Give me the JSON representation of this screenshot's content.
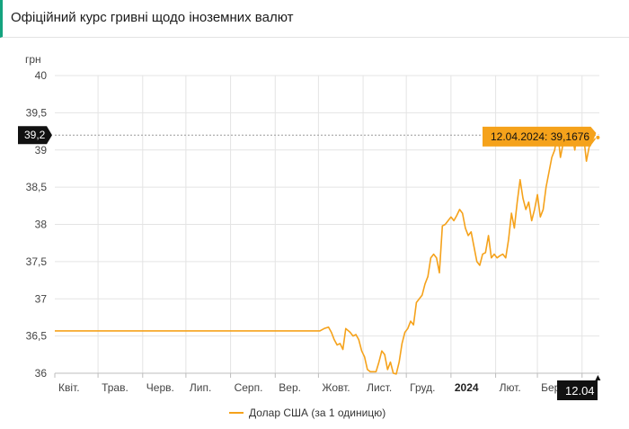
{
  "header": {
    "title": "Офіційний курс гривні щодо іноземних валют"
  },
  "chart_data": {
    "type": "line",
    "ylabel": "грн",
    "ylim": [
      36,
      40
    ],
    "yticks": [
      {
        "v": 36,
        "label": "36"
      },
      {
        "v": 36.5,
        "label": "36,5"
      },
      {
        "v": 37,
        "label": "37"
      },
      {
        "v": 37.5,
        "label": "37,5"
      },
      {
        "v": 38,
        "label": "38"
      },
      {
        "v": 38.5,
        "label": "38,5"
      },
      {
        "v": 39,
        "label": "39"
      },
      {
        "v": 39.5,
        "label": "39,5"
      },
      {
        "v": 40,
        "label": "40"
      }
    ],
    "xlim": [
      "2023-04-01",
      "2024-04-13"
    ],
    "xticks": [
      {
        "date": "2023-04-01",
        "label": "Квіт.",
        "bold": false
      },
      {
        "date": "2023-05-01",
        "label": "Трав.",
        "bold": false
      },
      {
        "date": "2023-06-01",
        "label": "Черв.",
        "bold": false
      },
      {
        "date": "2023-07-01",
        "label": "Лип.",
        "bold": false
      },
      {
        "date": "2023-08-01",
        "label": "Серп.",
        "bold": false
      },
      {
        "date": "2023-09-01",
        "label": "Вер.",
        "bold": false
      },
      {
        "date": "2023-10-01",
        "label": "Жовт.",
        "bold": false
      },
      {
        "date": "2023-11-01",
        "label": "Лист.",
        "bold": false
      },
      {
        "date": "2023-12-01",
        "label": "Груд.",
        "bold": false
      },
      {
        "date": "2024-01-01",
        "label": "2024",
        "bold": true
      },
      {
        "date": "2024-02-01",
        "label": "Лют.",
        "bold": false
      },
      {
        "date": "2024-03-01",
        "label": "Бер.",
        "bold": false
      },
      {
        "date": "2024-04-01",
        "label": "",
        "bold": false
      }
    ],
    "series": [
      {
        "name": "Долар США (за 1 одиницю)",
        "color": "#f5a21b",
        "points": [
          [
            "2023-04-01",
            36.5686
          ],
          [
            "2023-10-02",
            36.5686
          ],
          [
            "2023-10-05",
            36.6
          ],
          [
            "2023-10-08",
            36.62
          ],
          [
            "2023-10-10",
            36.55
          ],
          [
            "2023-10-12",
            36.45
          ],
          [
            "2023-10-14",
            36.38
          ],
          [
            "2023-10-16",
            36.4
          ],
          [
            "2023-10-18",
            36.32
          ],
          [
            "2023-10-20",
            36.6
          ],
          [
            "2023-10-23",
            36.55
          ],
          [
            "2023-10-25",
            36.5
          ],
          [
            "2023-10-27",
            36.52
          ],
          [
            "2023-10-29",
            36.45
          ],
          [
            "2023-10-31",
            36.3
          ],
          [
            "2023-11-02",
            36.22
          ],
          [
            "2023-11-04",
            36.05
          ],
          [
            "2023-11-06",
            36.02
          ],
          [
            "2023-11-10",
            36.02
          ],
          [
            "2023-11-12",
            36.15
          ],
          [
            "2023-11-14",
            36.3
          ],
          [
            "2023-11-16",
            36.25
          ],
          [
            "2023-11-18",
            36.05
          ],
          [
            "2023-11-20",
            36.15
          ],
          [
            "2023-11-22",
            36.0
          ],
          [
            "2023-11-24",
            35.99
          ],
          [
            "2023-11-26",
            36.15
          ],
          [
            "2023-11-28",
            36.4
          ],
          [
            "2023-11-30",
            36.55
          ],
          [
            "2023-12-02",
            36.6
          ],
          [
            "2023-12-04",
            36.7
          ],
          [
            "2023-12-06",
            36.65
          ],
          [
            "2023-12-08",
            36.95
          ],
          [
            "2023-12-10",
            37.0
          ],
          [
            "2023-12-12",
            37.05
          ],
          [
            "2023-12-14",
            37.2
          ],
          [
            "2023-12-16",
            37.3
          ],
          [
            "2023-12-18",
            37.55
          ],
          [
            "2023-12-20",
            37.6
          ],
          [
            "2023-12-22",
            37.55
          ],
          [
            "2023-12-24",
            37.35
          ],
          [
            "2023-12-26",
            37.98
          ],
          [
            "2023-12-28",
            38.0
          ],
          [
            "2023-12-30",
            38.05
          ],
          [
            "2024-01-01",
            38.1
          ],
          [
            "2024-01-03",
            38.05
          ],
          [
            "2024-01-05",
            38.12
          ],
          [
            "2024-01-07",
            38.2
          ],
          [
            "2024-01-09",
            38.15
          ],
          [
            "2024-01-11",
            37.95
          ],
          [
            "2024-01-13",
            37.85
          ],
          [
            "2024-01-15",
            37.9
          ],
          [
            "2024-01-17",
            37.7
          ],
          [
            "2024-01-19",
            37.5
          ],
          [
            "2024-01-21",
            37.45
          ],
          [
            "2024-01-23",
            37.6
          ],
          [
            "2024-01-25",
            37.62
          ],
          [
            "2024-01-27",
            37.85
          ],
          [
            "2024-01-29",
            37.55
          ],
          [
            "2024-01-31",
            37.6
          ],
          [
            "2024-02-02",
            37.55
          ],
          [
            "2024-02-04",
            37.58
          ],
          [
            "2024-02-06",
            37.6
          ],
          [
            "2024-02-08",
            37.55
          ],
          [
            "2024-02-10",
            37.8
          ],
          [
            "2024-02-12",
            38.15
          ],
          [
            "2024-02-14",
            37.95
          ],
          [
            "2024-02-16",
            38.3
          ],
          [
            "2024-02-18",
            38.6
          ],
          [
            "2024-02-20",
            38.35
          ],
          [
            "2024-02-22",
            38.2
          ],
          [
            "2024-02-24",
            38.3
          ],
          [
            "2024-02-26",
            38.05
          ],
          [
            "2024-02-28",
            38.2
          ],
          [
            "2024-03-01",
            38.4
          ],
          [
            "2024-03-03",
            38.1
          ],
          [
            "2024-03-05",
            38.2
          ],
          [
            "2024-03-07",
            38.5
          ],
          [
            "2024-03-09",
            38.7
          ],
          [
            "2024-03-11",
            38.9
          ],
          [
            "2024-03-13",
            39.0
          ],
          [
            "2024-03-15",
            39.25
          ],
          [
            "2024-03-17",
            38.9
          ],
          [
            "2024-03-19",
            39.1
          ],
          [
            "2024-03-21",
            39.3
          ],
          [
            "2024-03-23",
            39.15
          ],
          [
            "2024-03-25",
            39.2
          ],
          [
            "2024-03-27",
            39.0
          ],
          [
            "2024-03-29",
            39.3
          ],
          [
            "2024-03-31",
            39.1
          ],
          [
            "2024-04-02",
            39.2
          ],
          [
            "2024-04-04",
            38.85
          ],
          [
            "2024-04-06",
            39.05
          ],
          [
            "2024-04-08",
            39.1
          ],
          [
            "2024-04-10",
            39.15
          ],
          [
            "2024-04-12",
            39.1676
          ]
        ]
      }
    ],
    "crosshair": {
      "y_label": "39,2",
      "x_label": "12.04",
      "tooltip": "12.04.2024: 39,1676",
      "point": [
        "2024-04-12",
        39.1676
      ]
    },
    "grid": true,
    "legend_position": "bottom"
  }
}
